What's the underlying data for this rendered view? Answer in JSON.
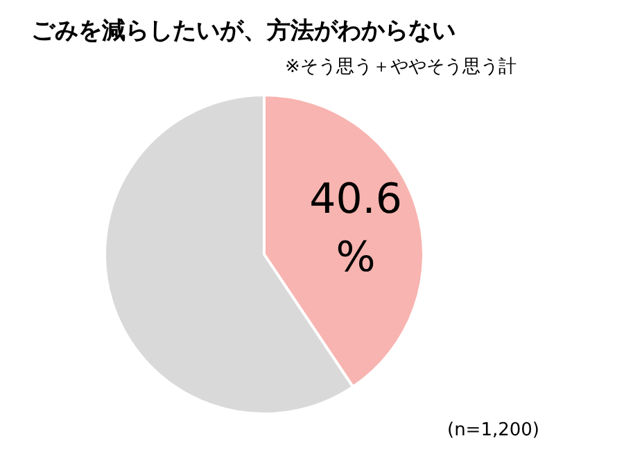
{
  "chart_data": {
    "type": "pie",
    "title": "ごみを減らしたいが、方法がわからない",
    "subtitle": "※そう思う＋ややそう思う計",
    "annotations": [
      "(n=1,200)"
    ],
    "categories": [
      null,
      null
    ],
    "values": [
      40.6,
      59.4
    ],
    "colors": [
      "#f8b4b0",
      "#d9d9d9"
    ],
    "value_labels": [
      "40.6\n%",
      null
    ]
  }
}
